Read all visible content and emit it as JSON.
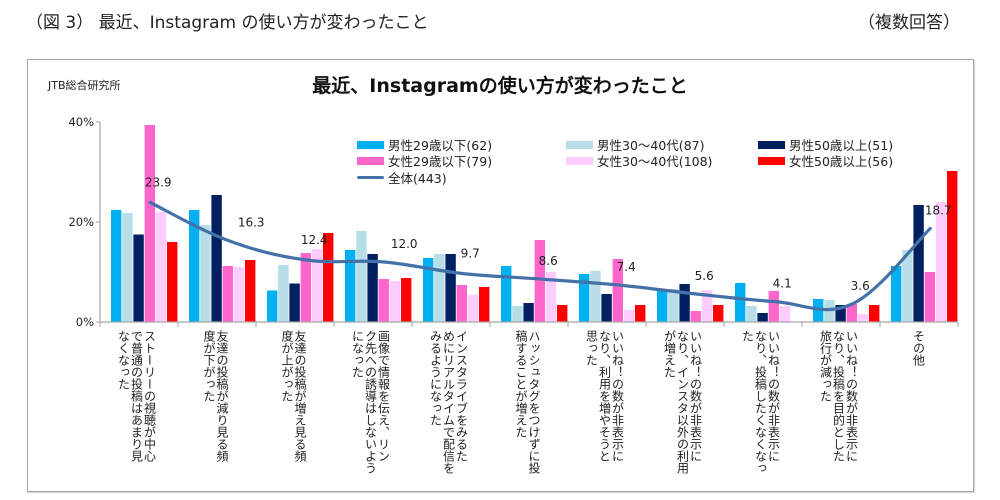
{
  "page": {
    "caption": "（図 3） 最近、Instagram の使い方が変わったこと",
    "note": "（複数回答）",
    "source": "JTB総合研究所"
  },
  "chart_data": {
    "type": "bar",
    "title": "最近、Instagramの使い方が変わったこと",
    "xlabel": "",
    "ylabel": "",
    "ylim": [
      0,
      40
    ],
    "yticks": [
      "0%",
      "20%",
      "40%"
    ],
    "ytick_values": [
      0,
      20,
      40
    ],
    "grid": false,
    "legend_position": "top-right",
    "categories": [
      "ストーリーの視聴が中心で普通の投稿はあまり見なくなった",
      "友達の投稿が減り見る頻度が下がった",
      "友達の投稿が増え見る頻度が上がった",
      "画像で情報を伝え、リンク先への誘導はしないようになった",
      "インスタライブをみるためにリアルタイムで配信をみるようになった",
      "ハッシュタグをつけずに投稿することが増えた",
      "いいね！の数が非表示になり、利用を増やそうと思った",
      "いいね！の数が非表示になり、インスタ以外の利用が増えた",
      "いいね！の数が非表示になり、投稿したくなくなった",
      "いいね！の数が非表示になり、投稿を目的とした旅行が減った",
      "その他"
    ],
    "category_lines": [
      [
        "ストーリーの視聴が中心",
        "で普通の投稿はあまり見",
        "なくなった"
      ],
      [
        "友達の投稿が減り見る頻",
        "度が下がった"
      ],
      [
        "友達の投稿が増え見る頻",
        "度が上がった"
      ],
      [
        "画像で情報を伝え、リン",
        "ク先への誘導はしないよう",
        "になった"
      ],
      [
        "インスタライブをみるた",
        "めにリアルタイムで配信を",
        "みるようになった"
      ],
      [
        "ハッシュタグをつけずに投",
        "稿することが増えた"
      ],
      [
        "いいね！の数が非表示に",
        "なり、利用を増やそうと",
        "思った"
      ],
      [
        "いいね！の数が非表示に",
        "なり、インスタ以外の利用",
        "が増えた"
      ],
      [
        "いいね！の数が非表示に",
        "なり、投稿したくなくなっ",
        "た"
      ],
      [
        "いいね！の数が非表示に",
        "なり、投稿を目的とした",
        "旅行が減った"
      ],
      [
        "その他"
      ]
    ],
    "series": [
      {
        "name": "男性29歳以下(62)",
        "color": "#00b0f0",
        "values": [
          22.4,
          22.4,
          6.3,
          14.4,
          12.8,
          11.2,
          9.6,
          6.6,
          7.8,
          4.6,
          11.2
        ]
      },
      {
        "name": "男性30～40代(87)",
        "color": "#b7dde8",
        "values": [
          21.8,
          19.4,
          11.4,
          18.2,
          13.6,
          3.2,
          10.2,
          6.6,
          3.2,
          4.4,
          14.4
        ]
      },
      {
        "name": "男性50歳以上(51)",
        "color": "#002060",
        "values": [
          17.5,
          25.4,
          7.7,
          13.6,
          13.6,
          3.8,
          5.6,
          7.6,
          1.8,
          3.4,
          23.4
        ]
      },
      {
        "name": "女性29歳以下(79)",
        "color": "#ff66cc",
        "values": [
          39.4,
          11.2,
          13.8,
          8.6,
          7.4,
          16.4,
          12.6,
          2.2,
          6.2,
          3.6,
          10.0
        ]
      },
      {
        "name": "女性30～40代(108)",
        "color": "#ffccff",
        "values": [
          22.0,
          11.0,
          14.6,
          8.2,
          5.4,
          10.0,
          2.4,
          6.4,
          3.2,
          1.6,
          24.0
        ]
      },
      {
        "name": "女性50歳以上(56)",
        "color": "#ff0000",
        "values": [
          16.0,
          12.4,
          17.8,
          8.8,
          7.0,
          3.4,
          3.4,
          3.4,
          0.0,
          3.4,
          30.2
        ]
      }
    ],
    "line_series": {
      "name": "全体(443)",
      "color": "#4472a8",
      "values": [
        23.9,
        16.3,
        12.4,
        12.0,
        9.7,
        8.6,
        7.4,
        5.6,
        4.1,
        3.6,
        18.7
      ],
      "labels": [
        "23.9",
        "16.3",
        "12.4",
        "12.0",
        "9.7",
        "8.6",
        "7.4",
        "5.6",
        "4.1",
        "3.6",
        "18.7"
      ]
    }
  }
}
